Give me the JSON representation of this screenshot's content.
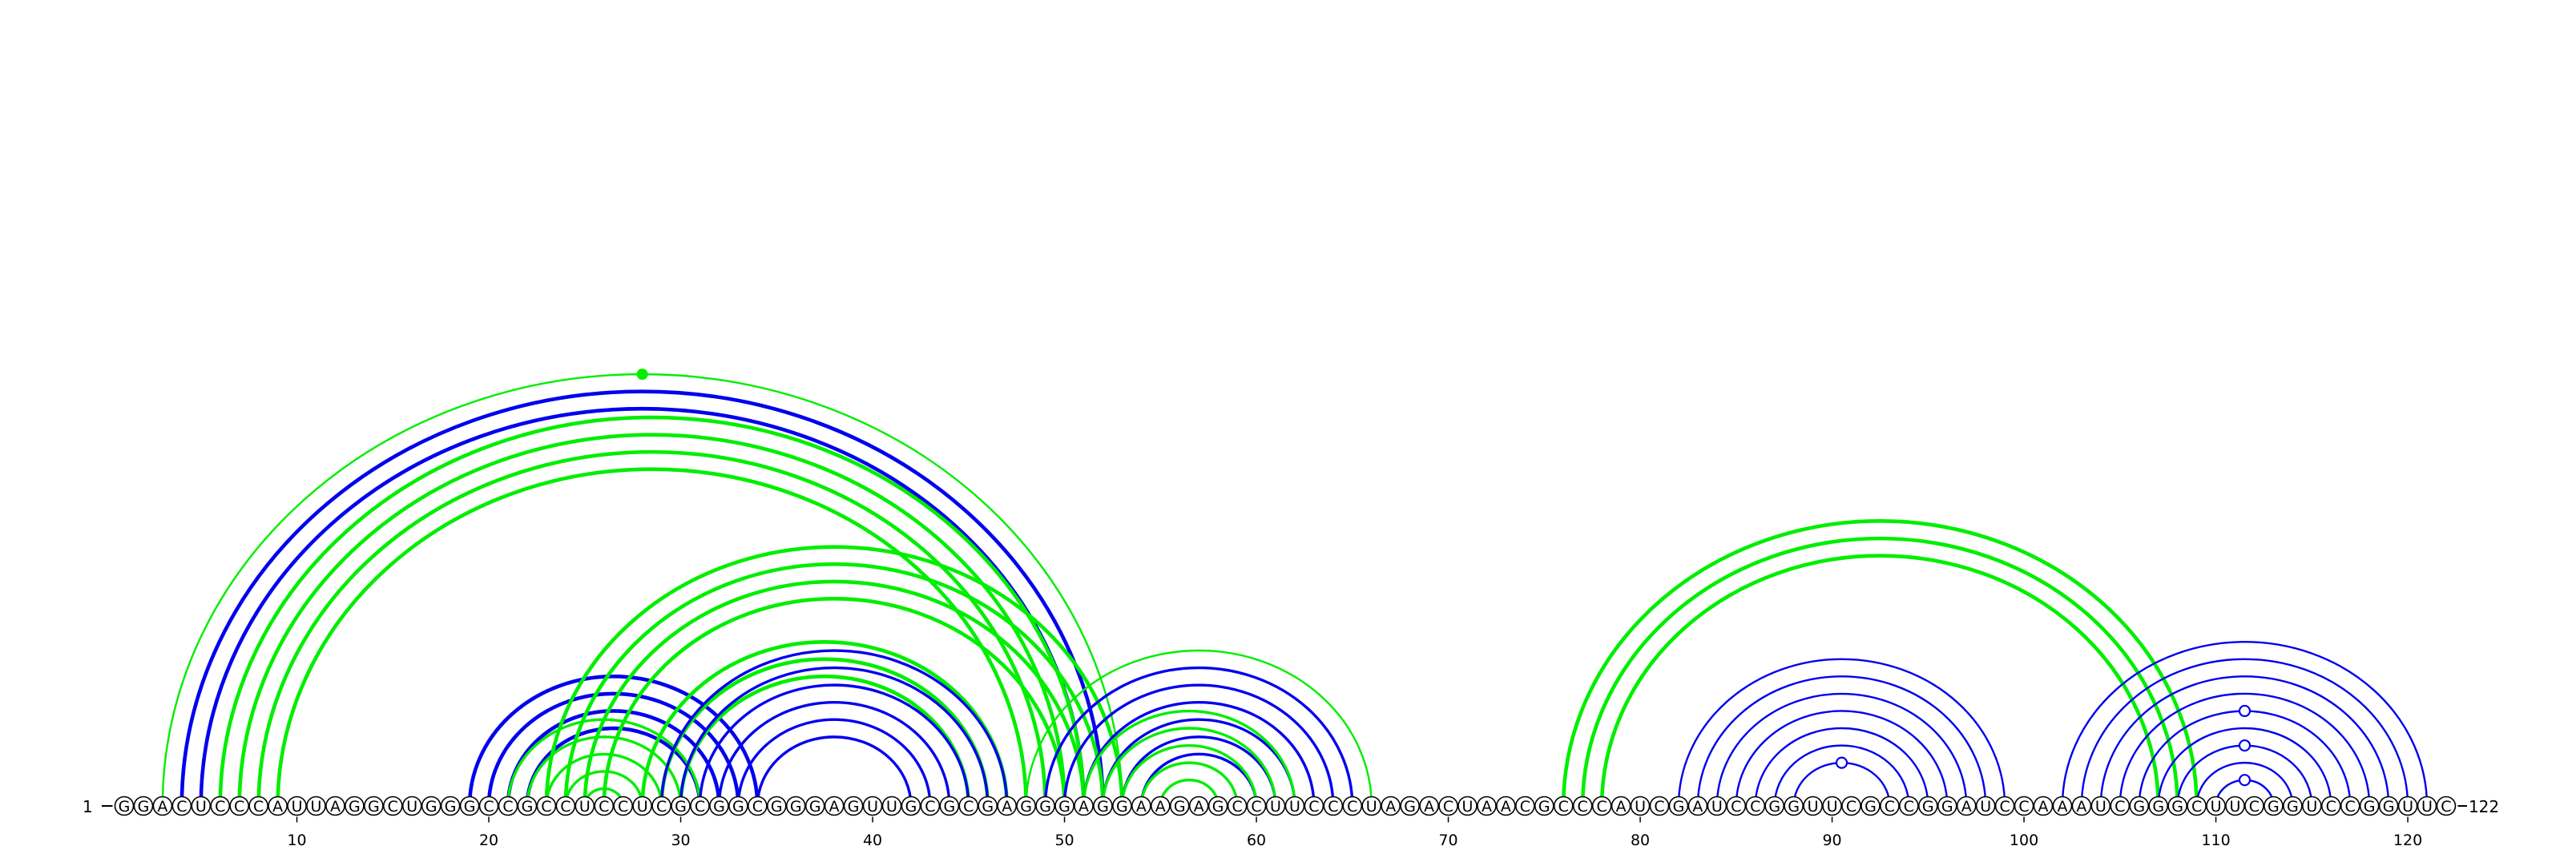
{
  "sequence": "GGACUCCCAUUAGGCUGGGCCGCCUCCUCGCGGCGGGAGUUGCGCGAGGGAGGAAGAGCCUUCCCUAGACUAACGCCCAUCGAUCCGGUUCGCCGGAUCCAAAUCGGGCUUCGGUCCGGUUC",
  "start_label": "1",
  "end_label": "122",
  "ticks": [
    10,
    20,
    30,
    40,
    50,
    60,
    70,
    80,
    90,
    100,
    110,
    120
  ],
  "colors": {
    "blue": "#0000ee",
    "green": "#00ee00"
  },
  "helices": [
    {
      "color": "green",
      "start": 3,
      "end": 53,
      "count": 1,
      "weight": "thin",
      "marker": "filled"
    },
    {
      "color": "blue",
      "start": 4,
      "end": 52,
      "count": 2,
      "weight": "bold"
    },
    {
      "color": "green",
      "start": 6,
      "end": 51,
      "count": 4,
      "weight": "bold"
    },
    {
      "color": "blue",
      "start": 19,
      "end": 34,
      "count": 4,
      "weight": "bold"
    },
    {
      "color": "green",
      "start": 21,
      "end": 31,
      "count": 5,
      "weight": "medium"
    },
    {
      "color": "green",
      "start": 23,
      "end": 53,
      "count": 4,
      "weight": "bold"
    },
    {
      "color": "green",
      "start": 28,
      "end": 47,
      "count": 3,
      "weight": "bold"
    },
    {
      "color": "blue",
      "start": 29,
      "end": 47,
      "count": 6,
      "weight": "medium"
    },
    {
      "color": "green",
      "start": 48,
      "end": 66,
      "count": 1,
      "weight": "thin"
    },
    {
      "color": "blue",
      "start": 49,
      "end": 65,
      "count": 6,
      "weight": "medium"
    },
    {
      "color": "green",
      "start": 51,
      "end": 62,
      "count": 5,
      "weight": "medium"
    },
    {
      "color": "green",
      "start": 76,
      "end": 109,
      "count": 3,
      "weight": "bold"
    },
    {
      "color": "blue",
      "start": 82,
      "end": 99,
      "count": 7,
      "weight": "thin",
      "marker": "open"
    },
    {
      "color": "blue",
      "start": 102,
      "end": 121,
      "count": 9,
      "weight": "thin",
      "marker": "open3"
    }
  ]
}
